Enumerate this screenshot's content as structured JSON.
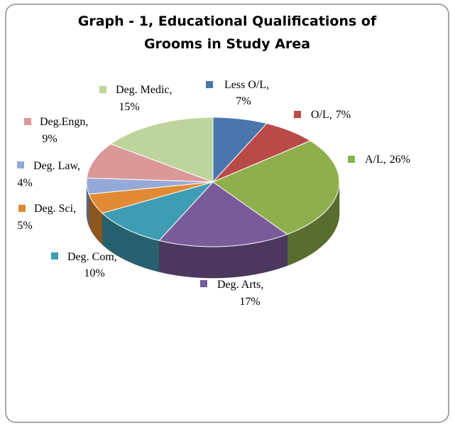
{
  "chart_data": {
    "type": "pie3d",
    "title": "Graph - 1, Educational Qualifications of Grooms in Study Area",
    "categories": [
      "Less O/L,",
      "O/L,",
      "A/L,",
      "Deg. Arts,",
      "Deg. Com,",
      "Deg. Sci,",
      "Deg. Law,",
      "Deg.Engn,",
      "Deg. Medic,"
    ],
    "values": [
      7,
      7,
      26,
      17,
      10,
      5,
      4,
      9,
      15
    ],
    "value_labels": [
      "7%",
      "7%",
      "26%",
      "17%",
      "10%",
      "5%",
      "4%",
      "9%",
      "15%"
    ],
    "colors": [
      "#4a76ad",
      "#b94a48",
      "#8eaf4c",
      "#7a5b9a",
      "#3f9db3",
      "#e28a33",
      "#95a9d8",
      "#da9896",
      "#bdd59c"
    ]
  }
}
